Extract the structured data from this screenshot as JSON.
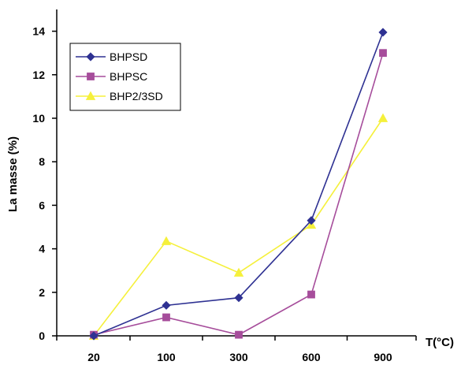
{
  "chart_data": {
    "type": "line",
    "title": "",
    "xlabel": "T(°C)",
    "ylabel": "La masse (%)",
    "categories": [
      "20",
      "100",
      "300",
      "600",
      "900"
    ],
    "ylim": [
      0,
      15
    ],
    "yticks": [
      0,
      2,
      4,
      6,
      8,
      10,
      12,
      14
    ],
    "grid": false,
    "legend_position": "top-left",
    "series": [
      {
        "name": "BHPSD",
        "color": "#2e3192",
        "marker": "diamond",
        "values": [
          0,
          1.4,
          1.75,
          5.3,
          13.95
        ]
      },
      {
        "name": "BHPSC",
        "color": "#a64d9b",
        "marker": "square",
        "values": [
          0.05,
          0.85,
          0.05,
          1.9,
          13.0
        ]
      },
      {
        "name": "BHP2/3SD",
        "color": "#f5f03b",
        "marker": "triangle",
        "values": [
          0,
          4.35,
          2.9,
          5.1,
          10.0
        ]
      }
    ]
  }
}
